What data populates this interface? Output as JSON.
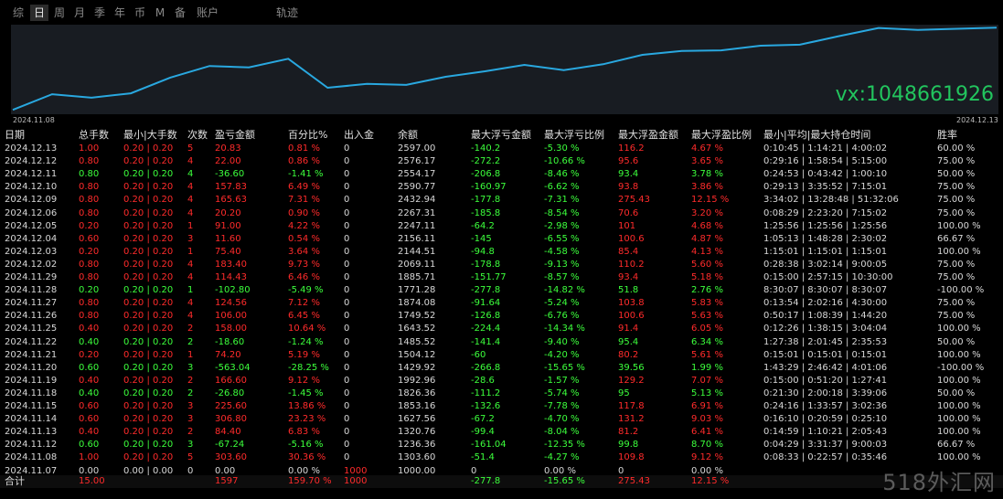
{
  "tabs": [
    {
      "label": "综",
      "active": false
    },
    {
      "label": "日",
      "active": true
    },
    {
      "label": "周",
      "active": false
    },
    {
      "label": "月",
      "active": false
    },
    {
      "label": "季",
      "active": false
    },
    {
      "label": "年",
      "active": false
    },
    {
      "label": "币",
      "active": false
    },
    {
      "label": "M",
      "active": false
    },
    {
      "label": "备",
      "active": false
    },
    {
      "label": "账户",
      "active": false
    },
    {
      "label": "轨迹",
      "active": false
    }
  ],
  "chart": {
    "start_date": "2024.11.08",
    "end_date": "2024.12.13",
    "line_color": "#29a8e0",
    "watermark": "vx:1048661926"
  },
  "columns": [
    "日期",
    "总手数",
    "最小|大手数",
    "次数",
    "盈亏金额",
    "百分比%",
    "出入金",
    "余额",
    "最大浮亏金额",
    "最大浮亏比例",
    "最大浮盈金额",
    "最大浮盈比例",
    "最小|平均|最大持仓时间",
    "胜率"
  ],
  "rows": [
    [
      "2024.12.13",
      "1.00",
      "0.20 | 0.20",
      "5",
      "20.83",
      "0.81 %",
      "0",
      "2597.00",
      "-140.2",
      "-5.30 %",
      "116.2",
      "4.67 %",
      "0:10:45 | 1:14:21 | 4:00:02",
      "60.00 %",
      "r"
    ],
    [
      "2024.12.12",
      "0.80",
      "0.20 | 0.20",
      "4",
      "22.00",
      "0.86 %",
      "0",
      "2576.17",
      "-272.2",
      "-10.66 %",
      "95.6",
      "3.65 %",
      "0:29:16 | 1:58:54 | 5:15:00",
      "75.00 %",
      "r"
    ],
    [
      "2024.12.11",
      "0.80",
      "0.20 | 0.20",
      "4",
      "-36.60",
      "-1.41 %",
      "0",
      "2554.17",
      "-206.8",
      "-8.46 %",
      "93.4",
      "3.78 %",
      "0:24:53 | 0:43:42 | 1:00:10",
      "50.00 %",
      "g"
    ],
    [
      "2024.12.10",
      "0.80",
      "0.20 | 0.20",
      "4",
      "157.83",
      "6.49 %",
      "0",
      "2590.77",
      "-160.97",
      "-6.62 %",
      "93.8",
      "3.86 %",
      "0:29:13 | 3:35:52 | 7:15:01",
      "75.00 %",
      "r"
    ],
    [
      "2024.12.09",
      "0.80",
      "0.20 | 0.20",
      "4",
      "165.63",
      "7.31 %",
      "0",
      "2432.94",
      "-177.8",
      "-7.31 %",
      "275.43",
      "12.15 %",
      "3:34:02 | 13:28:48 | 51:32:06",
      "75.00 %",
      "r"
    ],
    [
      "2024.12.06",
      "0.80",
      "0.20 | 0.20",
      "4",
      "20.20",
      "0.90 %",
      "0",
      "2267.31",
      "-185.8",
      "-8.54 %",
      "70.6",
      "3.20 %",
      "0:08:29 | 2:23:20 | 7:15:02",
      "75.00 %",
      "r"
    ],
    [
      "2024.12.05",
      "0.20",
      "0.20 | 0.20",
      "1",
      "91.00",
      "4.22 %",
      "0",
      "2247.11",
      "-64.2",
      "-2.98 %",
      "101",
      "4.68 %",
      "1:25:56 | 1:25:56 | 1:25:56",
      "100.00 %",
      "r"
    ],
    [
      "2024.12.04",
      "0.60",
      "0.20 | 0.20",
      "3",
      "11.60",
      "0.54 %",
      "0",
      "2156.11",
      "-145",
      "-6.55 %",
      "100.6",
      "4.87 %",
      "1:05:13 | 1:48:28 | 2:30:02",
      "66.67 %",
      "r"
    ],
    [
      "2024.12.03",
      "0.20",
      "0.20 | 0.20",
      "1",
      "75.40",
      "3.64 %",
      "0",
      "2144.51",
      "-94.8",
      "-4.58 %",
      "85.4",
      "4.13 %",
      "1:15:01 | 1:15:01 | 1:15:01",
      "100.00 %",
      "r"
    ],
    [
      "2024.12.02",
      "0.80",
      "0.20 | 0.20",
      "4",
      "183.40",
      "9.73 %",
      "0",
      "2069.11",
      "-178.8",
      "-9.13 %",
      "110.2",
      "5.60 %",
      "0:28:38 | 3:02:14 | 9:00:05",
      "75.00 %",
      "r"
    ],
    [
      "2024.11.29",
      "0.80",
      "0.20 | 0.20",
      "4",
      "114.43",
      "6.46 %",
      "0",
      "1885.71",
      "-151.77",
      "-8.57 %",
      "93.4",
      "5.18 %",
      "0:15:00 | 2:57:15 | 10:30:00",
      "75.00 %",
      "r"
    ],
    [
      "2024.11.28",
      "0.20",
      "0.20 | 0.20",
      "1",
      "-102.80",
      "-5.49 %",
      "0",
      "1771.28",
      "-277.8",
      "-14.82 %",
      "51.8",
      "2.76 %",
      "8:30:07 | 8:30:07 | 8:30:07",
      "-100.00 %",
      "g"
    ],
    [
      "2024.11.27",
      "0.80",
      "0.20 | 0.20",
      "4",
      "124.56",
      "7.12 %",
      "0",
      "1874.08",
      "-91.64",
      "-5.24 %",
      "103.8",
      "5.83 %",
      "0:13:54 | 2:02:16 | 4:30:00",
      "75.00 %",
      "r"
    ],
    [
      "2024.11.26",
      "0.80",
      "0.20 | 0.20",
      "4",
      "106.00",
      "6.45 %",
      "0",
      "1749.52",
      "-126.8",
      "-6.76 %",
      "100.6",
      "5.63 %",
      "0:50:17 | 1:08:39 | 1:44:20",
      "75.00 %",
      "r"
    ],
    [
      "2024.11.25",
      "0.40",
      "0.20 | 0.20",
      "2",
      "158.00",
      "10.64 %",
      "0",
      "1643.52",
      "-224.4",
      "-14.34 %",
      "91.4",
      "6.05 %",
      "0:12:26 | 1:38:15 | 3:04:04",
      "100.00 %",
      "r"
    ],
    [
      "2024.11.22",
      "0.40",
      "0.20 | 0.20",
      "2",
      "-18.60",
      "-1.24 %",
      "0",
      "1485.52",
      "-141.4",
      "-9.40 %",
      "95.4",
      "6.34 %",
      "1:27:38 | 2:01:45 | 2:35:53",
      "50.00 %",
      "g"
    ],
    [
      "2024.11.21",
      "0.20",
      "0.20 | 0.20",
      "1",
      "74.20",
      "5.19 %",
      "0",
      "1504.12",
      "-60",
      "-4.20 %",
      "80.2",
      "5.61 %",
      "0:15:01 | 0:15:01 | 0:15:01",
      "100.00 %",
      "r"
    ],
    [
      "2024.11.20",
      "0.60",
      "0.20 | 0.20",
      "3",
      "-563.04",
      "-28.25 %",
      "0",
      "1429.92",
      "-266.8",
      "-15.65 %",
      "39.56",
      "1.99 %",
      "1:43:29 | 2:46:42 | 4:01:06",
      "-100.00 %",
      "g"
    ],
    [
      "2024.11.19",
      "0.40",
      "0.20 | 0.20",
      "2",
      "166.60",
      "9.12 %",
      "0",
      "1992.96",
      "-28.6",
      "-1.57 %",
      "129.2",
      "7.07 %",
      "0:15:00 | 0:51:20 | 1:27:41",
      "100.00 %",
      "r"
    ],
    [
      "2024.11.18",
      "0.40",
      "0.20 | 0.20",
      "2",
      "-26.80",
      "-1.45 %",
      "0",
      "1826.36",
      "-111.2",
      "-5.74 %",
      "95",
      "5.13 %",
      "0:21:30 | 2:00:18 | 3:39:06",
      "50.00 %",
      "g"
    ],
    [
      "2024.11.15",
      "0.60",
      "0.20 | 0.20",
      "3",
      "225.60",
      "13.86 %",
      "0",
      "1853.16",
      "-132.6",
      "-7.78 %",
      "117.8",
      "6.91 %",
      "0:24:16 | 1:33:57 | 3:02:36",
      "100.00 %",
      "r"
    ],
    [
      "2024.11.14",
      "0.60",
      "0.20 | 0.20",
      "3",
      "306.80",
      "23.23 %",
      "0",
      "1627.56",
      "-67.2",
      "-4.70 %",
      "131.2",
      "9.03 %",
      "0:16:10 | 0:20:59 | 0:25:10",
      "100.00 %",
      "r"
    ],
    [
      "2024.11.13",
      "0.40",
      "0.20 | 0.20",
      "2",
      "84.40",
      "6.83 %",
      "0",
      "1320.76",
      "-99.4",
      "-8.04 %",
      "81.2",
      "6.41 %",
      "0:14:59 | 1:10:21 | 2:05:43",
      "100.00 %",
      "r"
    ],
    [
      "2024.11.12",
      "0.60",
      "0.20 | 0.20",
      "3",
      "-67.24",
      "-5.16 %",
      "0",
      "1236.36",
      "-161.04",
      "-12.35 %",
      "99.8",
      "8.70 %",
      "0:04:29 | 3:31:37 | 9:00:03",
      "66.67 %",
      "g"
    ],
    [
      "2024.11.08",
      "1.00",
      "0.20 | 0.20",
      "5",
      "303.60",
      "30.36 %",
      "0",
      "1303.60",
      "-51.4",
      "-4.27 %",
      "109.8",
      "9.12 %",
      "0:08:33 | 0:22:57 | 0:35:46",
      "100.00 %",
      "r"
    ],
    [
      "2024.11.07",
      "0.00",
      "0.00 | 0.00",
      "0",
      "0.00",
      "0.00 %",
      "1000",
      "1000.00",
      "0",
      "0.00 %",
      "0",
      "0.00 %",
      "",
      "",
      "w"
    ]
  ],
  "total": {
    "label": "合计",
    "lots": "15.00",
    "pnl": "1597",
    "pct": "159.70 %",
    "deposit": "1000",
    "max_float_loss": "-277.8",
    "max_float_loss_pct": "-15.65 %",
    "max_float_profit": "275.43",
    "max_float_profit_pct": "12.15 %"
  },
  "site_watermark": "518外汇网",
  "colors": {
    "profit": "#ff2b2b",
    "loss": "#3cff3c",
    "line": "#29a8e0",
    "panel": "#181c22"
  }
}
